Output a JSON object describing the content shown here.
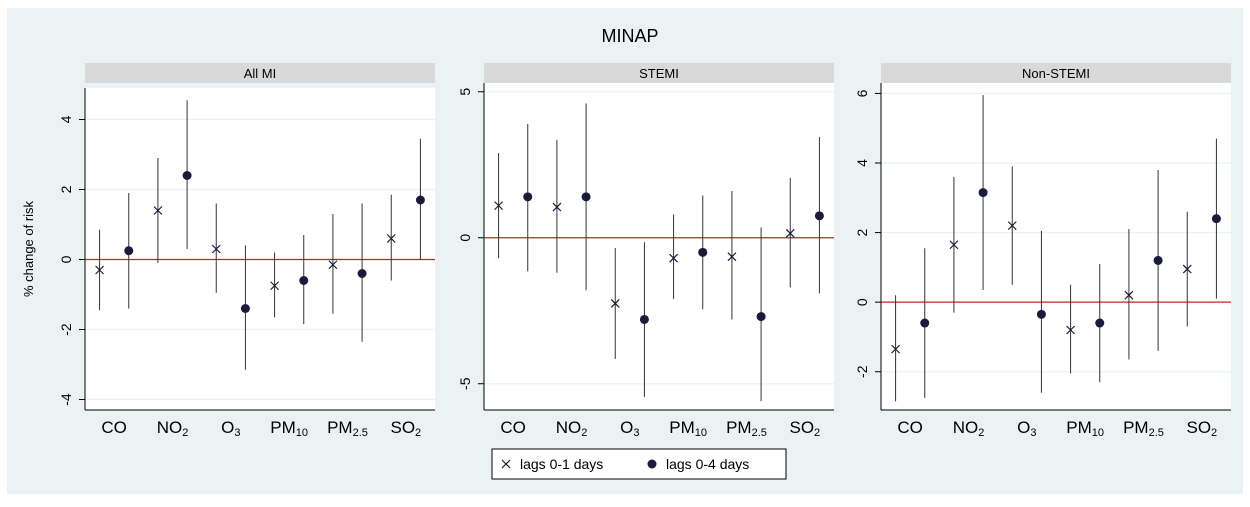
{
  "figure": {
    "title": "MINAP"
  },
  "chart_data": [
    {
      "type": "scatter",
      "panel_title": "All MI",
      "ylabel": "% change of risk",
      "xlabel": "",
      "categories": [
        "CO",
        "NO2",
        "O3",
        "PM10",
        "PM2.5",
        "SO2"
      ],
      "ylim": [
        -4.3,
        4.9
      ],
      "yticks": [
        -4,
        -2,
        0,
        2,
        4
      ],
      "reference_line": 0,
      "grid": true,
      "series": [
        {
          "name": "lags 0-1 days",
          "marker": "x",
          "values": [
            -0.3,
            1.4,
            0.3,
            -0.75,
            -0.15,
            0.6
          ],
          "ci_low": [
            -1.45,
            -0.1,
            -0.95,
            -1.65,
            -1.55,
            -0.6
          ],
          "ci_high": [
            0.85,
            2.9,
            1.6,
            0.2,
            1.3,
            1.85
          ]
        },
        {
          "name": "lags 0-4 days",
          "marker": "dot",
          "values": [
            0.25,
            2.4,
            -1.4,
            -0.6,
            -0.4,
            1.7
          ],
          "ci_low": [
            -1.4,
            0.3,
            -3.15,
            -1.85,
            -2.35,
            0.0
          ],
          "ci_high": [
            1.9,
            4.55,
            0.4,
            0.7,
            1.6,
            3.45
          ]
        }
      ]
    },
    {
      "type": "scatter",
      "panel_title": "STEMI",
      "ylabel": "",
      "xlabel": "",
      "categories": [
        "CO",
        "NO2",
        "O3",
        "PM10",
        "PM2.5",
        "SO2"
      ],
      "ylim": [
        -5.9,
        5.3
      ],
      "yticks": [
        -5,
        0,
        5
      ],
      "reference_line": 0,
      "grid": true,
      "series": [
        {
          "name": "lags 0-1 days",
          "marker": "x",
          "values": [
            1.1,
            1.05,
            -2.25,
            -0.7,
            -0.65,
            0.15
          ],
          "ci_low": [
            -0.7,
            -1.2,
            -4.15,
            -2.1,
            -2.8,
            -1.7
          ],
          "ci_high": [
            2.9,
            3.35,
            -0.35,
            0.8,
            1.6,
            2.05
          ]
        },
        {
          "name": "lags 0-4 days",
          "marker": "dot",
          "values": [
            1.4,
            1.4,
            -2.8,
            -0.5,
            -2.7,
            0.75
          ],
          "ci_low": [
            -1.15,
            -1.8,
            -5.45,
            -2.45,
            -5.6,
            -1.9
          ],
          "ci_high": [
            3.9,
            4.6,
            -0.15,
            1.45,
            0.35,
            3.45
          ]
        }
      ]
    },
    {
      "type": "scatter",
      "panel_title": "Non-STEMI",
      "ylabel": "",
      "xlabel": "",
      "categories": [
        "CO",
        "NO2",
        "O3",
        "PM10",
        "PM2.5",
        "SO2"
      ],
      "ylim": [
        -3.1,
        6.3
      ],
      "yticks": [
        -2,
        0,
        2,
        4,
        6
      ],
      "reference_line": 0,
      "grid": true,
      "series": [
        {
          "name": "lags 0-1 days",
          "marker": "x",
          "values": [
            -1.35,
            1.65,
            2.2,
            -0.8,
            0.2,
            0.95
          ],
          "ci_low": [
            -2.85,
            -0.3,
            0.5,
            -2.05,
            -1.65,
            -0.7
          ],
          "ci_high": [
            0.2,
            3.6,
            3.9,
            0.5,
            2.1,
            2.6
          ]
        },
        {
          "name": "lags 0-4 days",
          "marker": "dot",
          "values": [
            -0.6,
            3.15,
            -0.35,
            -0.6,
            1.2,
            2.4
          ],
          "ci_low": [
            -2.75,
            0.35,
            -2.6,
            -2.3,
            -1.4,
            0.1
          ],
          "ci_high": [
            1.55,
            5.95,
            2.05,
            1.1,
            3.8,
            4.7
          ]
        }
      ]
    }
  ],
  "legend": {
    "placement": "bottom-center",
    "items": [
      {
        "marker": "x",
        "label": "lags 0-1 days"
      },
      {
        "marker": "dot",
        "label": "lags 0-4 days"
      }
    ]
  },
  "colors": {
    "outer_background": "#eaf2f3",
    "plot_background": "#ffffff",
    "strip_background": "#d9d9d9",
    "grid": "#eaf2f3",
    "reference_line": "#cc2222",
    "ci_line": "#333333",
    "point": "#1a1a3a"
  },
  "tick_label_parts": {
    "CO": [
      "CO",
      ""
    ],
    "NO2": [
      "NO",
      "2"
    ],
    "O3": [
      "O",
      "3"
    ],
    "PM10": [
      "PM",
      "10"
    ],
    "PM2.5": [
      "PM",
      "2.5"
    ],
    "SO2": [
      "SO",
      "2"
    ]
  }
}
